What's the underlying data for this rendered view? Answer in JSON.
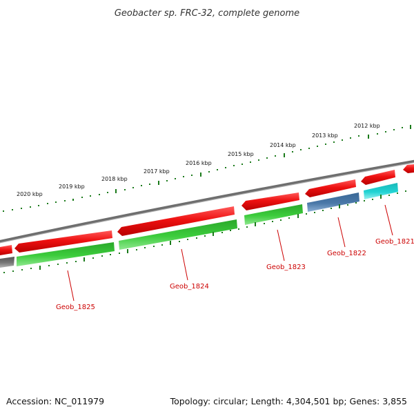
{
  "title": "Geobacter sp. FRC-32, complete genome",
  "footer": {
    "accession": "Accession: NC_011979",
    "summary": "Topology: circular; Length: 4,304,501 bp; Genes: 3,855"
  },
  "scale": {
    "labels": [
      "2020 kbp",
      "2019 kbp",
      "2018 kbp",
      "2017 kbp",
      "2016 kbp",
      "2015 kbp",
      "2014 kbp",
      "2013 kbp",
      "2012 kbp"
    ],
    "color": "#1a7a1a"
  },
  "genes": [
    {
      "label": "Geob_1825",
      "strand": "forward",
      "color": "#33cc33"
    },
    {
      "label": "Geob_1824",
      "strand": "forward",
      "color": "#33cc33"
    },
    {
      "label": "Geob_1823",
      "strand": "forward",
      "color": "#33cc33"
    },
    {
      "label": "Geob_1822",
      "strand": "forward",
      "color": "#4a78a8"
    },
    {
      "label": "Geob_1821",
      "strand": "forward",
      "color": "#22cccc"
    }
  ],
  "colors": {
    "backbone": "#7a7a7a",
    "reverse_cds": "#ee1111",
    "label_line": "#cc0000"
  }
}
